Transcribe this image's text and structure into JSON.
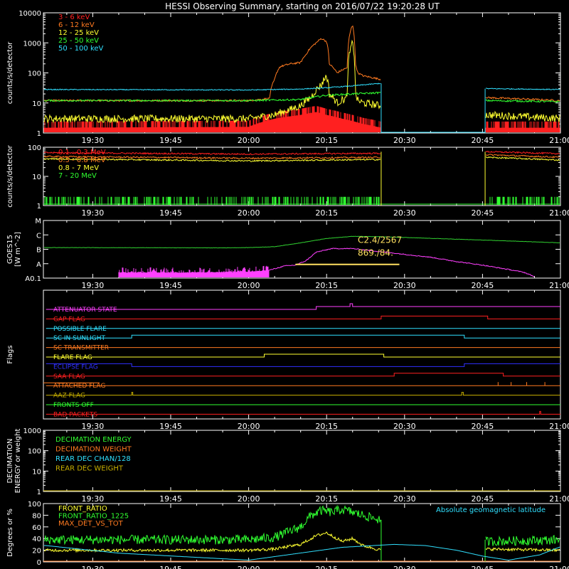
{
  "title": "HESSI Observing Summary, starting on 2016/07/22 19:20:28 UT",
  "colors": {
    "red": "#ff2020",
    "orange": "#ff7a20",
    "yellow": "#ffff30",
    "green": "#30ff30",
    "cyan": "#30e0ff",
    "magenta": "#ff40ff",
    "blue": "#3030ff",
    "olive": "#c8b000",
    "gold": "#ffe060",
    "goes_green": "#30d030"
  },
  "time_axis": {
    "tick_labels": [
      "19:30",
      "19:45",
      "20:00",
      "20:15",
      "20:30",
      "20:45",
      "21:00"
    ],
    "tick_minutes": [
      30,
      45,
      60,
      75,
      90,
      105,
      120
    ],
    "range_minutes": [
      20.5,
      120
    ]
  },
  "chart_data": [
    {
      "type": "line",
      "panel": "low_energy",
      "ylabel": "counts/s/detector",
      "y_scale": "log",
      "ylim": [
        1,
        10000
      ],
      "y_tick_labels": [
        "1",
        "10",
        "100",
        "1000",
        "10000"
      ],
      "data_gaps_minutes": [
        [
          85.5,
          105.5
        ]
      ],
      "series": [
        {
          "name": "3 - 6 keV",
          "color": "red",
          "x": [
            21,
            60,
            65,
            70,
            73,
            75,
            76.5,
            78,
            80,
            82,
            85.5
          ],
          "y": [
            1.5,
            1.6,
            3,
            4,
            5,
            4,
            3.5,
            3,
            2.5,
            2,
            1.5
          ]
        },
        {
          "name": "6 - 12 keV",
          "color": "orange",
          "x": [
            21,
            60,
            64,
            65,
            66,
            68,
            70,
            71,
            72,
            73,
            74,
            75,
            75.5,
            77,
            79,
            80,
            80.5,
            81,
            82,
            85.5,
            106,
            120
          ],
          "y": [
            12,
            12,
            14,
            60,
            160,
            200,
            220,
            400,
            700,
            1000,
            1400,
            1100,
            200,
            100,
            150,
            4000,
            200,
            100,
            80,
            60,
            15,
            12
          ]
        },
        {
          "name": "12 - 25 keV",
          "color": "yellow",
          "x": [
            21,
            60,
            65,
            68,
            70,
            72,
            74,
            75,
            75.5,
            77,
            79,
            80,
            80.5,
            81,
            82,
            85.5,
            106,
            120
          ],
          "y": [
            3,
            3,
            4,
            6,
            8,
            15,
            40,
            80,
            20,
            10,
            15,
            1000,
            20,
            12,
            10,
            8,
            4,
            3
          ]
        },
        {
          "name": "25 - 50 keV",
          "color": "green",
          "x": [
            21,
            60,
            70,
            75,
            80,
            85.5,
            106,
            120
          ],
          "y": [
            12,
            12,
            13,
            18,
            20,
            22,
            12,
            11
          ]
        },
        {
          "name": "50 - 100 keV",
          "color": "cyan",
          "x": [
            21,
            60,
            70,
            75,
            80,
            85.5,
            106,
            120
          ],
          "y": [
            28,
            27,
            29,
            32,
            37,
            45,
            30,
            28
          ]
        }
      ]
    },
    {
      "type": "line",
      "panel": "high_energy",
      "ylabel": "counts/s/detector",
      "y_scale": "log",
      "ylim": [
        1,
        100
      ],
      "y_tick_labels": [
        "1",
        "10",
        "100"
      ],
      "data_gaps_minutes": [
        [
          85.5,
          105.5
        ]
      ],
      "series": [
        {
          "name": "0.1 - 0.3 MeV",
          "color": "red",
          "x": [
            21,
            60,
            85.5,
            106,
            120
          ],
          "y": [
            65,
            58,
            62,
            70,
            60
          ]
        },
        {
          "name": "0.3 - 0.8 MeV",
          "color": "orange",
          "x": [
            21,
            60,
            85.5,
            106,
            120
          ],
          "y": [
            48,
            42,
            45,
            55,
            45
          ]
        },
        {
          "name": "0.8 - 7 MeV",
          "color": "yellow",
          "x": [
            21,
            60,
            85.5,
            106,
            120
          ],
          "y": [
            40,
            34,
            38,
            45,
            36
          ]
        },
        {
          "name": "7 - 20 MeV",
          "color": "green",
          "x": [
            21,
            60,
            85.5,
            106,
            120
          ],
          "y": [
            1.3,
            1.3,
            1.3,
            1.3,
            1.3
          ]
        }
      ]
    },
    {
      "type": "line",
      "panel": "goes",
      "ylabel": "GOES15",
      "ylabel2": "[W m^-2]",
      "y_tick_labels": [
        "A0.1",
        "A",
        "B",
        "C",
        "M"
      ],
      "y_tick_values": [
        -8,
        -7,
        -6,
        -5,
        -4
      ],
      "annotations": [
        "C2.4/2567",
        "869./84."
      ],
      "annotation_color": "gold",
      "highlight_span_minutes": [
        69,
        89
      ],
      "series": [
        {
          "name": "",
          "color": "goes_green",
          "x": [
            21,
            55,
            60,
            65,
            70,
            75,
            80,
            85,
            90,
            100,
            110,
            120
          ],
          "y": [
            -5.88,
            -5.9,
            -5.88,
            -5.82,
            -5.55,
            -5.25,
            -5.1,
            -5.12,
            -5.18,
            -5.3,
            -5.42,
            -5.55
          ]
        },
        {
          "name": "",
          "color": "magenta",
          "x": [
            35,
            50,
            60,
            64,
            67,
            69,
            71,
            73,
            76,
            80,
            85,
            90,
            95,
            100,
            105,
            110,
            113,
            115
          ],
          "y": [
            -7.6,
            -7.6,
            -7.55,
            -7.45,
            -7.15,
            -7.1,
            -6.8,
            -6.2,
            -5.95,
            -5.95,
            -6.15,
            -6.35,
            -6.55,
            -6.85,
            -7.1,
            -7.4,
            -7.6,
            -7.9
          ]
        }
      ]
    },
    {
      "type": "line",
      "panel": "flags",
      "ylabel": "Flags",
      "series": [
        {
          "name": "ATTENUATOR STATE",
          "color": "magenta",
          "segments": [
            [
              21,
              73,
              0
            ],
            [
              73,
              79.5,
              1
            ],
            [
              79.5,
              80,
              2
            ],
            [
              80,
              120,
              1
            ]
          ]
        },
        {
          "name": "GAP FLAG",
          "color": "red",
          "segments": [
            [
              21,
              85.5,
              0
            ],
            [
              85.5,
              106,
              1
            ],
            [
              106,
              120,
              0
            ]
          ]
        },
        {
          "name": "POSSIBLE FLARE",
          "color": "cyan",
          "segments": [
            [
              21,
              120,
              0
            ]
          ]
        },
        {
          "name": "SC IN SUNLIGHT",
          "color": "cyan",
          "segments": [
            [
              21,
              37.5,
              0
            ],
            [
              37.5,
              101.5,
              1
            ],
            [
              101.5,
              120,
              0
            ]
          ]
        },
        {
          "name": "SC TRANSMITTER",
          "color": "orange",
          "segments": [
            [
              21,
              120,
              0
            ]
          ]
        },
        {
          "name": "FLARE FLAG",
          "color": "yellow",
          "segments": [
            [
              21,
              63,
              0
            ],
            [
              63,
              86,
              1
            ],
            [
              86,
              120,
              0
            ]
          ]
        },
        {
          "name": "ECLIPSE FLAG",
          "color": "blue",
          "segments": [
            [
              21,
              37.5,
              1
            ],
            [
              37.5,
              101.5,
              0
            ],
            [
              101.5,
              120,
              1
            ]
          ]
        },
        {
          "name": "SAA FLAG",
          "color": "red",
          "segments": [
            [
              21,
              88,
              0
            ],
            [
              88,
              109,
              1
            ],
            [
              109,
              120,
              0
            ]
          ]
        },
        {
          "name": "ATTACHED FLAG",
          "color": "orange",
          "segments": [
            [
              21,
              120,
              0
            ]
          ]
        },
        {
          "name": "AAZ FLAG",
          "color": "olive",
          "segments": [
            [
              21,
              37.5,
              0
            ],
            [
              37.5,
              37.7,
              1
            ],
            [
              37.7,
              101,
              0
            ],
            [
              101,
              101.3,
              1
            ],
            [
              101.3,
              120,
              0
            ]
          ]
        },
        {
          "name": "FRONTS OFF",
          "color": "green",
          "segments": [
            [
              21,
              120,
              0
            ]
          ]
        },
        {
          "name": "BAD PACKETS",
          "color": "red",
          "segments": [
            [
              21,
              116,
              0
            ],
            [
              116,
              116.2,
              1
            ],
            [
              116.2,
              120,
              0
            ]
          ]
        }
      ]
    },
    {
      "type": "line",
      "panel": "decimation",
      "ylabel": "DECIMATION",
      "ylabel2": "ENERGY or weight",
      "y_scale": "log",
      "ylim": [
        1,
        1000
      ],
      "y_tick_labels": [
        "1",
        "10",
        "100",
        "1000"
      ],
      "series": [
        {
          "name": "DECIMATION ENERGY",
          "color": "green",
          "x": [
            21,
            120
          ],
          "y": [
            1,
            1
          ]
        },
        {
          "name": "DECIMATION WEIGHT",
          "color": "orange",
          "x": [
            21,
            120
          ],
          "y": [
            1,
            1
          ]
        },
        {
          "name": "REAR DEC CHAN/128",
          "color": "cyan",
          "x": [
            21,
            120
          ],
          "y": [
            1,
            1
          ]
        },
        {
          "name": "REAR DEC WEIGHT",
          "color": "olive",
          "x": [
            21,
            120
          ],
          "y": [
            1,
            1
          ]
        }
      ]
    },
    {
      "type": "line",
      "panel": "ratios",
      "ylabel": "Degrees or %",
      "ylim": [
        0,
        100
      ],
      "y_tick_labels": [
        "0",
        "20",
        "40",
        "60",
        "80",
        "100"
      ],
      "annotations": [
        "Absolute geomagnetic latitude"
      ],
      "series": [
        {
          "name": "FRONT_RATIO",
          "color": "yellow",
          "x": [
            21,
            60,
            65,
            70,
            73,
            75,
            78,
            80,
            82,
            85.5,
            106,
            120
          ],
          "y": [
            20,
            20,
            22,
            30,
            45,
            50,
            35,
            40,
            28,
            20,
            22,
            20
          ]
        },
        {
          "name": "FRONT_RATIO_1225",
          "color": "green",
          "x": [
            21,
            45,
            60,
            65,
            70,
            72,
            74,
            76,
            78,
            80,
            82,
            84,
            85.5,
            106,
            120
          ],
          "y": [
            38,
            38,
            38,
            42,
            60,
            80,
            88,
            85,
            90,
            85,
            80,
            75,
            72,
            35,
            38
          ]
        },
        {
          "name": "MAX_DET_VS_TOT",
          "color": "orange",
          "x": [
            21,
            120
          ],
          "y": [
            0,
            0
          ]
        },
        {
          "name": "Absolute geomagnetic latitude",
          "color": "cyan",
          "x": [
            21,
            35,
            60,
            78,
            88,
            94,
            100,
            105,
            110,
            116,
            120
          ],
          "y": [
            28,
            15,
            3,
            25,
            30,
            28,
            20,
            10,
            3,
            12,
            26
          ]
        }
      ]
    }
  ]
}
